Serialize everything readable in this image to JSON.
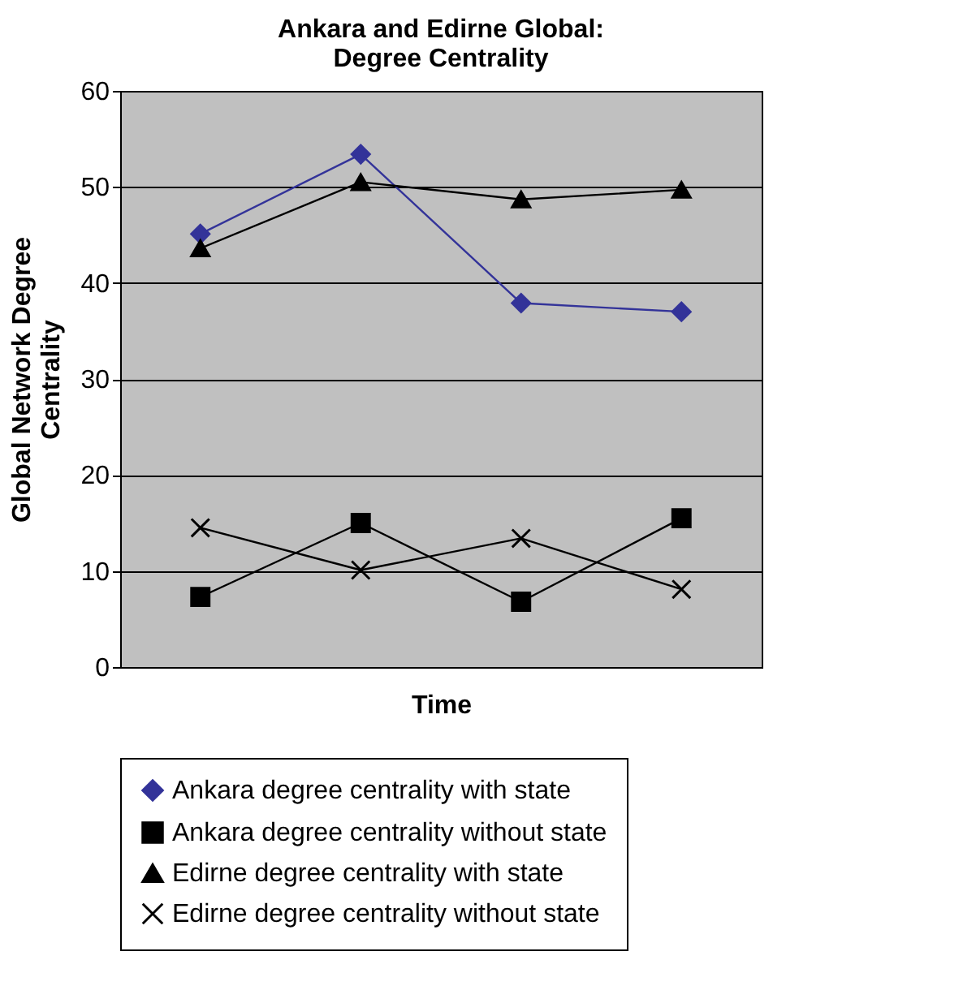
{
  "chart_data": {
    "type": "line",
    "title": "Ankara and Edirne Global:\nDegree Centrality",
    "xlabel": "Time",
    "ylabel": "Global Network Degree\nCentrality",
    "categories": [
      null,
      null,
      null,
      null
    ],
    "ylim": [
      0,
      60
    ],
    "yticks": [
      0,
      10,
      20,
      30,
      40,
      50,
      60
    ],
    "grid": "y",
    "legend": "bottom",
    "line_style": "solid",
    "series": [
      {
        "name": "Ankara degree centrality with state",
        "color": "#333399",
        "marker": "diamond",
        "values": [
          45.1,
          53.4,
          37.9,
          37.0
        ]
      },
      {
        "name": "Ankara degree centrality without state",
        "color": "#000000",
        "marker": "square",
        "values": [
          7.3,
          15.0,
          6.8,
          15.5
        ]
      },
      {
        "name": "Edirne degree centrality with state",
        "color": "#000000",
        "marker": "triangle",
        "values": [
          43.6,
          50.5,
          48.7,
          49.7
        ]
      },
      {
        "name": "Edirne degree centrality without state",
        "color": "#000000",
        "marker": "cross",
        "values": [
          14.5,
          10.1,
          13.4,
          8.1
        ]
      }
    ]
  }
}
